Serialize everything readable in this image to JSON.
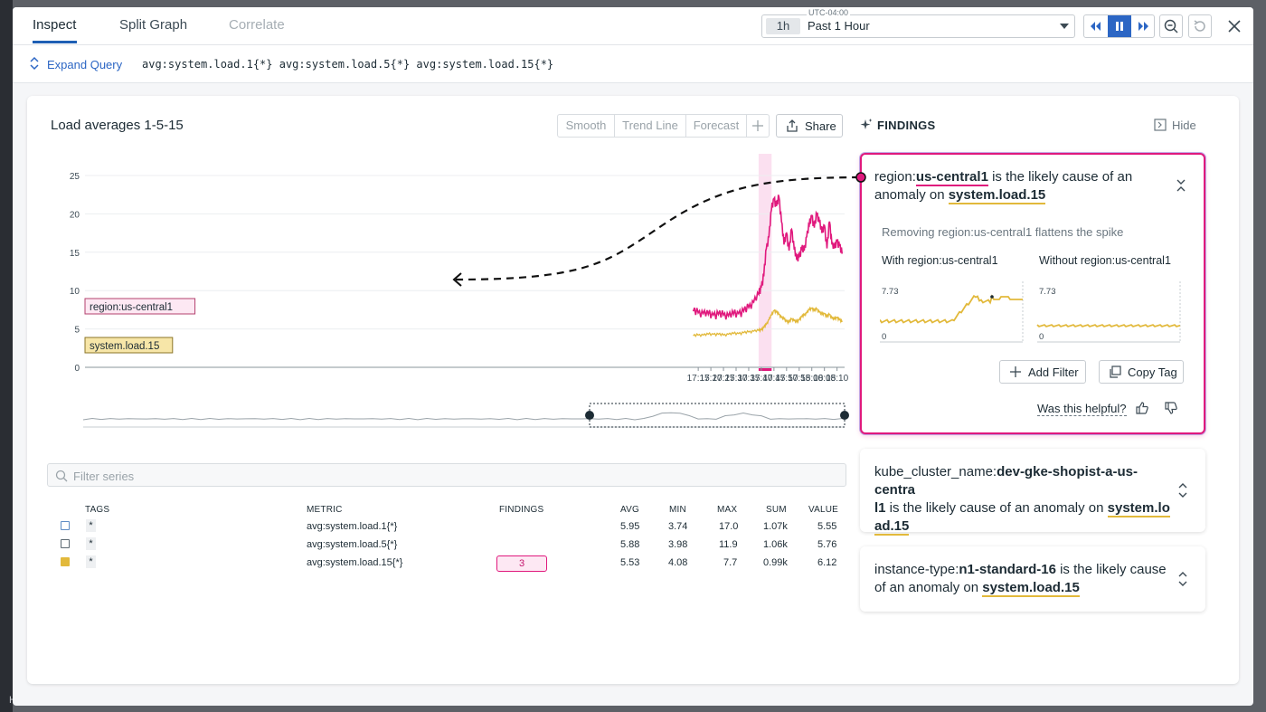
{
  "tabs": [
    {
      "label": "Inspect"
    },
    {
      "label": "Split Graph"
    },
    {
      "label": "Correlate"
    }
  ],
  "time": {
    "timezone": "UTC-04:00",
    "badge": "1h",
    "label": "Past 1 Hour"
  },
  "query": {
    "expand_label": "Expand Query",
    "text": "avg:system.load.1{*} avg:system.load.5{*} avg:system.load.15{*}"
  },
  "chart": {
    "title": "Load averages 1-5-15",
    "options": [
      "Smooth",
      "Trend Line",
      "Forecast"
    ],
    "share_label": "Share",
    "region_label": "region:us-central1",
    "series_label": "system.load.15",
    "colors": {
      "pink": "#e0197d",
      "gold": "#e2b93b",
      "highlight": "#fbe0f0"
    }
  },
  "chart_data": {
    "type": "line",
    "title": "Load averages 1-5-15",
    "x_ticks": [
      "17:15",
      "17:20",
      "17:25",
      "17:30",
      "17:35",
      "17:40",
      "17:45",
      "17:50",
      "17:55",
      "18:00",
      "18:05",
      "18:10"
    ],
    "y_ticks": [
      0,
      5,
      10,
      15,
      20,
      25
    ],
    "ylim": [
      0,
      25
    ],
    "anomaly_window": [
      "17:40",
      "17:43"
    ],
    "series": [
      {
        "name": "region:us-central1",
        "color": "#e0197d",
        "x": [
          "17:13",
          "17:15",
          "17:17",
          "17:19",
          "17:21",
          "17:23",
          "17:25",
          "17:27",
          "17:29",
          "17:31",
          "17:33",
          "17:35",
          "17:37",
          "17:39",
          "17:40",
          "17:41",
          "17:42",
          "17:43",
          "17:44",
          "17:45",
          "17:46",
          "17:47",
          "17:48",
          "17:49",
          "17:50",
          "17:51",
          "17:52",
          "17:53",
          "17:54",
          "17:55",
          "17:56",
          "17:57",
          "17:58",
          "17:59",
          "18:00",
          "18:01",
          "18:02",
          "18:03",
          "18:04",
          "18:05",
          "18:06",
          "18:07",
          "18:08",
          "18:09",
          "18:10",
          "18:11",
          "18:12"
        ],
        "y": [
          7.3,
          7.1,
          7.0,
          6.9,
          6.8,
          6.9,
          6.8,
          6.7,
          6.9,
          7.0,
          7.3,
          7.8,
          8.5,
          9.5,
          10.5,
          12.0,
          15.5,
          17.0,
          20.5,
          22.0,
          21.0,
          22.2,
          19.0,
          16.0,
          17.5,
          15.2,
          18.0,
          15.5,
          14.0,
          14.5,
          15.5,
          15.2,
          17.0,
          18.5,
          19.8,
          18.2,
          20.0,
          19.0,
          17.5,
          18.5,
          15.5,
          19.0,
          16.0,
          15.5,
          16.5,
          15.8,
          14.8
        ]
      },
      {
        "name": "system.load.15",
        "color": "#e2b93b",
        "x": [
          "17:13",
          "17:15",
          "17:17",
          "17:19",
          "17:21",
          "17:23",
          "17:25",
          "17:27",
          "17:29",
          "17:31",
          "17:33",
          "17:35",
          "17:37",
          "17:39",
          "17:40",
          "17:41",
          "17:42",
          "17:43",
          "17:44",
          "17:45",
          "17:46",
          "17:47",
          "17:48",
          "17:49",
          "17:50",
          "17:51",
          "17:52",
          "17:53",
          "17:54",
          "17:55",
          "17:56",
          "17:57",
          "17:58",
          "17:59",
          "18:00",
          "18:01",
          "18:02",
          "18:03",
          "18:04",
          "18:05",
          "18:06",
          "18:07",
          "18:08",
          "18:09",
          "18:10",
          "18:11",
          "18:12"
        ],
        "y": [
          4.1,
          4.2,
          4.2,
          4.3,
          4.3,
          4.3,
          4.2,
          4.3,
          4.4,
          4.4,
          4.5,
          4.6,
          4.7,
          4.8,
          4.9,
          5.2,
          5.6,
          6.2,
          6.8,
          7.4,
          7.2,
          6.9,
          6.5,
          6.3,
          6.0,
          5.9,
          6.3,
          6.1,
          5.9,
          6.2,
          6.6,
          6.8,
          7.1,
          7.5,
          7.7,
          7.4,
          7.6,
          7.2,
          6.9,
          7.0,
          6.6,
          6.9,
          6.4,
          6.3,
          6.5,
          6.2,
          5.9
        ]
      }
    ]
  },
  "table": {
    "filter_placeholder": "Filter series",
    "headers": {
      "tags": "TAGS",
      "metric": "METRIC",
      "findings": "FINDINGS",
      "avg": "AVG",
      "min": "MIN",
      "max": "MAX",
      "sum": "SUM",
      "value": "VALUE"
    },
    "rows": [
      {
        "tag": "*",
        "metric": "avg:system.load.1{*}",
        "findings": "",
        "avg": "5.95",
        "min": "3.74",
        "max": "17.0",
        "sum": "1.07k",
        "value": "5.55",
        "checked": false
      },
      {
        "tag": "*",
        "metric": "avg:system.load.5{*}",
        "findings": "",
        "avg": "5.88",
        "min": "3.98",
        "max": "11.9",
        "sum": "1.06k",
        "value": "5.76",
        "checked": false
      },
      {
        "tag": "*",
        "metric": "avg:system.load.15{*}",
        "findings": "3",
        "avg": "5.53",
        "min": "4.08",
        "max": "7.7",
        "sum": "0.99k",
        "value": "6.12",
        "checked": true
      }
    ]
  },
  "findings": {
    "header": "FINDINGS",
    "hide_label": "Hide",
    "cards": [
      {
        "prefix": "region:",
        "value": "us-central1",
        "middle": " is the likely cause of an anomaly on ",
        "metric": "system.load.15",
        "subtitle": "Removing region:us-central1 flattens the spike",
        "with_label": "With region:us-central1",
        "without_label": "Without region:us-central1",
        "max_tick": "7.73",
        "min_tick": "0",
        "add_filter": "Add Filter",
        "copy_tag": "Copy Tag",
        "helpful": "Was this helpful?"
      },
      {
        "prefix": "kube_cluster_name:",
        "value_line1": "dev-gke-shopist-a-us-centra",
        "value_line2": "l1",
        "middle": " is the likely cause of an anomaly on ",
        "metric_a": "system.lo",
        "metric_b": "ad.15"
      },
      {
        "prefix": "instance-type:",
        "value": "n1-standard-16",
        "middle": " is the likely cause",
        "line2": "of an anomaly on ",
        "metric": "system.load.15"
      }
    ]
  },
  "backdrop": {
    "help": "Help"
  }
}
